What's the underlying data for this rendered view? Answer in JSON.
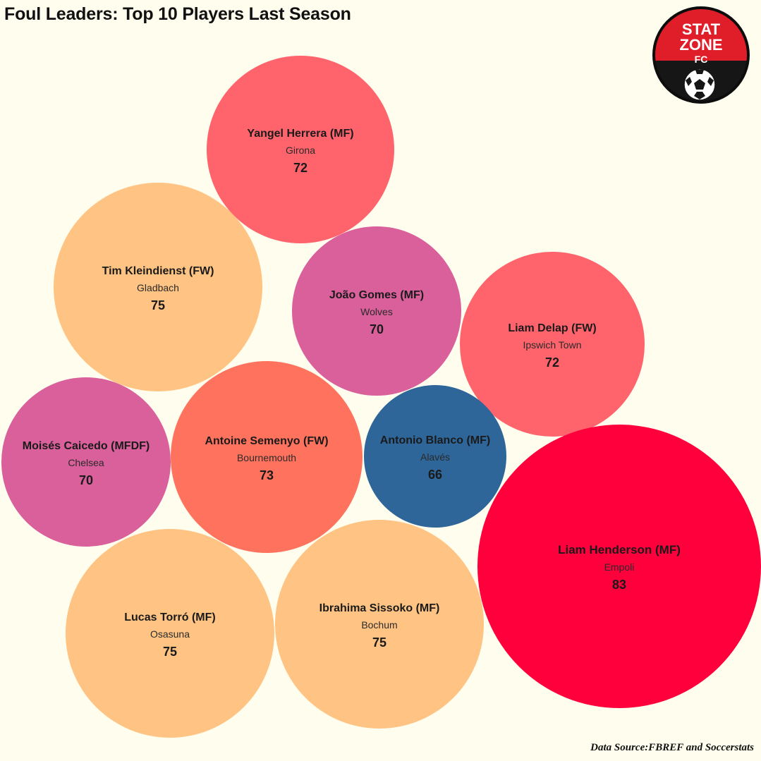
{
  "title": "Foul Leaders: Top 10 Players Last Season",
  "source": "Data Source:FBREF  and Soccerstats",
  "logo": {
    "line1": "STAT",
    "line2": "ZONE",
    "line3": "FC",
    "icon": "soccer-ball-icon"
  },
  "chart_data": {
    "type": "bubble",
    "title": "Foul Leaders: Top 10 Players Last Season",
    "points": [
      {
        "player": "Yangel Herrera (MF)",
        "team": "Girona",
        "value": 72,
        "color": "#ff646d"
      },
      {
        "player": "Tim Kleindienst (FW)",
        "team": "Gladbach",
        "value": 75,
        "color": "#ffc483"
      },
      {
        "player": "João Gomes (MF)",
        "team": "Wolves",
        "value": 70,
        "color": "#d9609a"
      },
      {
        "player": "Liam Delap (FW)",
        "team": "Ipswich Town",
        "value": 72,
        "color": "#ff646d"
      },
      {
        "player": "Moisés Caicedo (MFDF)",
        "team": "Chelsea",
        "value": 70,
        "color": "#d9609a"
      },
      {
        "player": "Antoine Semenyo (FW)",
        "team": "Bournemouth",
        "value": 73,
        "color": "#ff735e"
      },
      {
        "player": "Antonio Blanco (MF)",
        "team": "Alavés",
        "value": 66,
        "color": "#2e6699"
      },
      {
        "player": "Liam Henderson (MF)",
        "team": "Empoli",
        "value": 83,
        "color": "#ff003d"
      },
      {
        "player": "Lucas Torró (MF)",
        "team": "Osasuna",
        "value": 75,
        "color": "#ffc483"
      },
      {
        "player": "Ibrahima Sissoko (MF)",
        "team": "Bochum",
        "value": 75,
        "color": "#ffc483"
      }
    ]
  }
}
